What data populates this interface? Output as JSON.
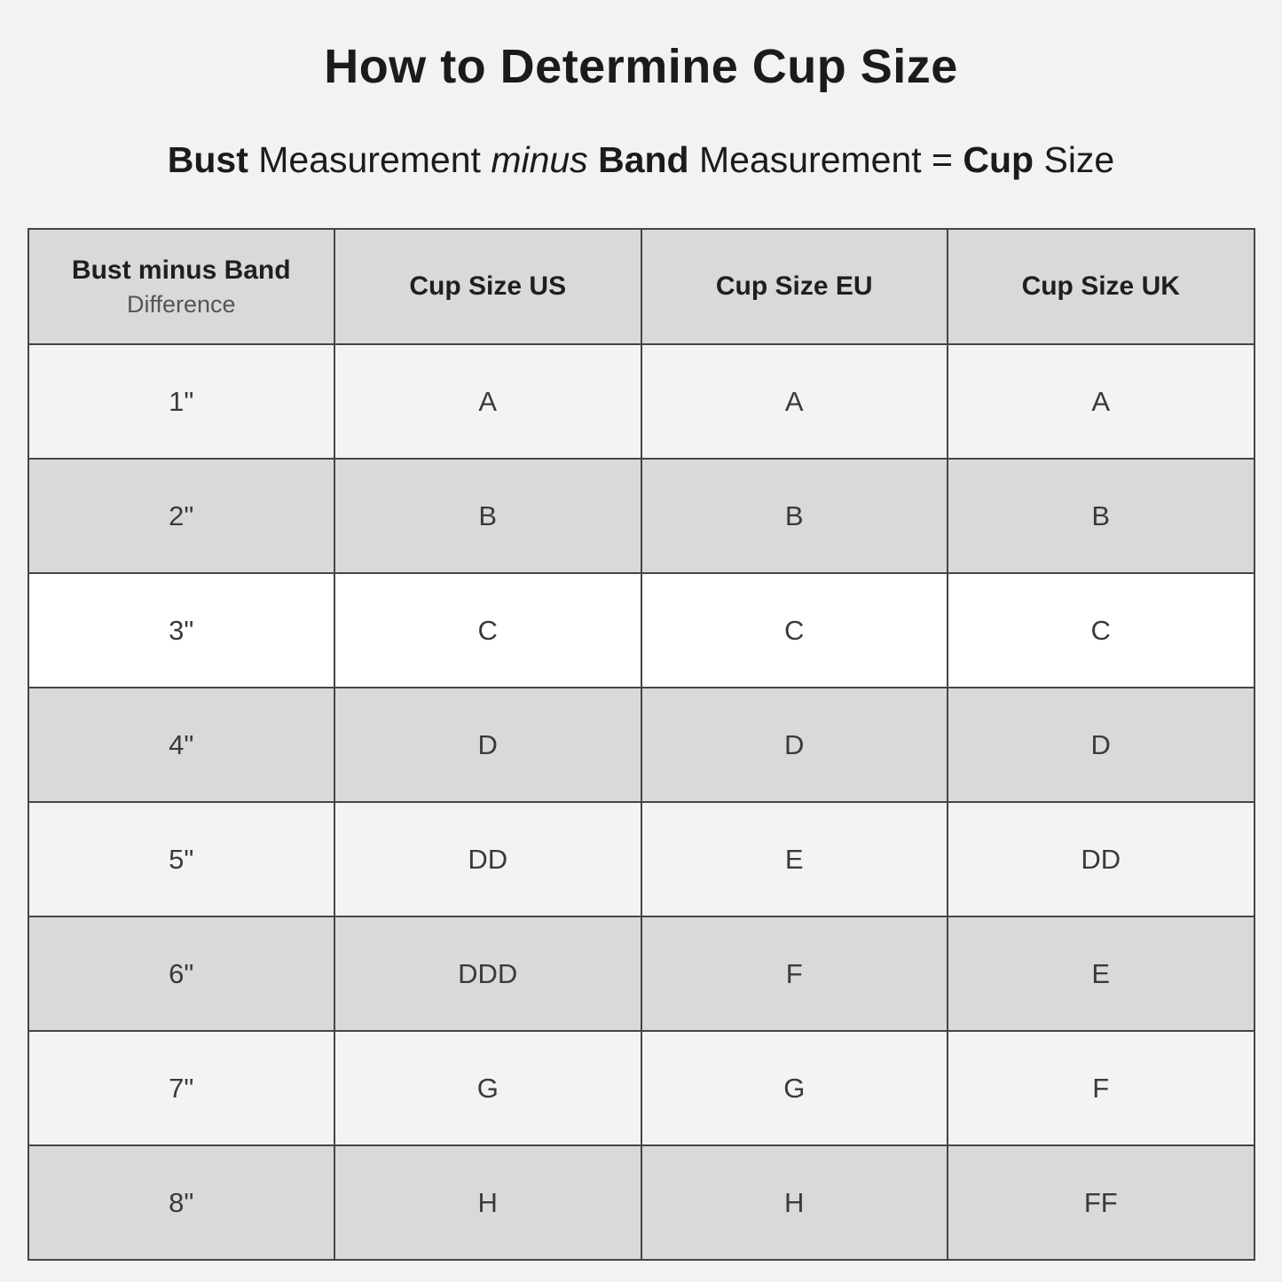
{
  "title": "How to Determine Cup Size",
  "subtitle": {
    "bust": "Bust",
    "measurement1": " Measurement ",
    "minus": "minus",
    "band": " Band",
    "measurement2": " Measurement = ",
    "cup": "Cup",
    "size": " Size"
  },
  "table": {
    "headers": {
      "col1_line1": "Bust minus Band",
      "col1_line2": "Difference",
      "col2": "Cup Size US",
      "col3": "Cup Size EU",
      "col4": "Cup Size UK"
    },
    "rows": [
      {
        "difference": "1\"",
        "us": "A",
        "eu": "A",
        "uk": "A"
      },
      {
        "difference": "2\"",
        "us": "B",
        "eu": "B",
        "uk": "B"
      },
      {
        "difference": "3\"",
        "us": "C",
        "eu": "C",
        "uk": "C"
      },
      {
        "difference": "4\"",
        "us": "D",
        "eu": "D",
        "uk": "D"
      },
      {
        "difference": "5\"",
        "us": "DD",
        "eu": "E",
        "uk": "DD"
      },
      {
        "difference": "6\"",
        "us": "DDD",
        "eu": "F",
        "uk": "E"
      },
      {
        "difference": "7\"",
        "us": "G",
        "eu": "G",
        "uk": "F"
      },
      {
        "difference": "8\"",
        "us": "H",
        "eu": "H",
        "uk": "FF"
      }
    ]
  },
  "colors": {
    "page_background": "#f2f2f2",
    "header_row": "#d9d9d9",
    "row_shade_dark": "#d9d9d9",
    "row_shade_light": "#f3f3f3",
    "row_shade_white": "#ffffff",
    "border": "#454545",
    "title_text": "#1b1b1b",
    "cell_text": "#3a3a3a",
    "subheader_text": "#555555"
  }
}
